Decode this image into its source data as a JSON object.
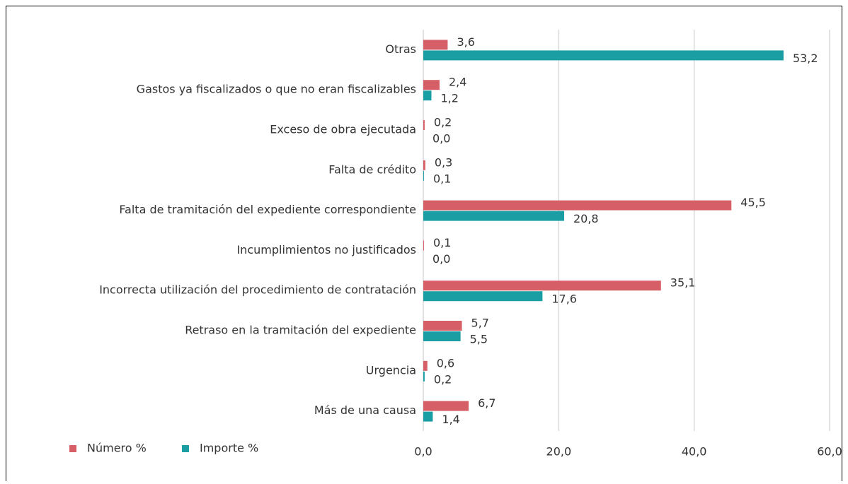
{
  "chart_data": {
    "type": "barh",
    "categories": [
      "Otras",
      "Gastos ya fiscalizados o que no eran fiscalizables",
      "Exceso de obra ejecutada",
      "Falta de crédito",
      "Falta de tramitación del expediente correspondiente",
      "Incumplimientos no justificados",
      "Incorrecta utilización del procedimiento de contratación",
      "Retraso en la tramitación del expediente",
      "Urgencia",
      "Más de una causa"
    ],
    "series": [
      {
        "name": "Número %",
        "color": "#d65f67",
        "values": [
          3.6,
          2.4,
          0.2,
          0.3,
          45.5,
          0.1,
          35.1,
          5.7,
          0.6,
          6.7
        ],
        "value_labels": [
          "3,6",
          "2,4",
          "0,2",
          "0,3",
          "45,5",
          "0,1",
          "35,1",
          "5,7",
          "0,6",
          "6,7"
        ]
      },
      {
        "name": "Importe %",
        "color": "#1a9ea3",
        "values": [
          53.2,
          1.2,
          0.0,
          0.1,
          20.8,
          0.0,
          17.6,
          5.5,
          0.2,
          1.4
        ],
        "value_labels": [
          "53,2",
          "1,2",
          "0,0",
          "0,1",
          "20,8",
          "0,0",
          "17,6",
          "5,5",
          "0,2",
          "1,4"
        ]
      }
    ],
    "xlim": [
      0,
      60
    ],
    "xticks": [
      {
        "value": 0,
        "label": "0,0"
      },
      {
        "value": 20,
        "label": "20,0"
      },
      {
        "value": 40,
        "label": "40,0"
      },
      {
        "value": 60,
        "label": "60,0"
      }
    ],
    "grid": true,
    "legend": "bottom-left"
  }
}
